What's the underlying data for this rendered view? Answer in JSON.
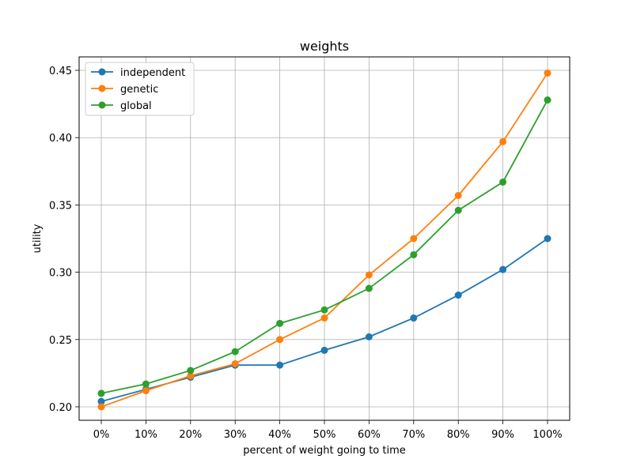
{
  "chart_data": {
    "type": "line",
    "title": "weights",
    "xlabel": "percent of weight going to time",
    "ylabel": "utility",
    "categories": [
      "0%",
      "10%",
      "20%",
      "30%",
      "40%",
      "50%",
      "60%",
      "70%",
      "80%",
      "90%",
      "100%"
    ],
    "ylim": [
      0.19,
      0.46
    ],
    "yticks": [
      "0.20",
      "0.25",
      "0.30",
      "0.35",
      "0.40",
      "0.45"
    ],
    "ytick_values": [
      0.2,
      0.25,
      0.3,
      0.35,
      0.4,
      0.45
    ],
    "grid": true,
    "legend_position": "top-left",
    "series": [
      {
        "name": "independent",
        "color": "#1f77b4",
        "values": [
          0.204,
          0.213,
          0.222,
          0.231,
          0.231,
          0.242,
          0.252,
          0.266,
          0.283,
          0.302,
          0.325
        ]
      },
      {
        "name": "genetic",
        "color": "#ff7f0e",
        "values": [
          0.2,
          0.212,
          0.223,
          0.232,
          0.25,
          0.266,
          0.298,
          0.325,
          0.357,
          0.397,
          0.448
        ]
      },
      {
        "name": "global",
        "color": "#2ca02c",
        "values": [
          0.21,
          0.217,
          0.227,
          0.241,
          0.262,
          0.272,
          0.288,
          0.313,
          0.346,
          0.367,
          0.428
        ]
      }
    ]
  }
}
